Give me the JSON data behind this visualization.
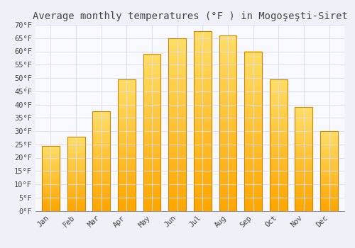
{
  "title": "Average monthly temperatures (°F ) in Mogoşeşti-Siret",
  "months": [
    "Jan",
    "Feb",
    "Mar",
    "Apr",
    "May",
    "Jun",
    "Jul",
    "Aug",
    "Sep",
    "Oct",
    "Nov",
    "Dec"
  ],
  "values": [
    24.5,
    28.0,
    37.5,
    49.5,
    59.0,
    65.0,
    67.5,
    66.0,
    60.0,
    49.5,
    39.0,
    30.0
  ],
  "bar_color_top": "#FFD966",
  "bar_color_bottom": "#FFA500",
  "bar_edge_color": "#CC8800",
  "background_color": "#f0f0f8",
  "plot_bg_color": "#f8f8ff",
  "grid_color": "#ddddee",
  "text_color": "#444444",
  "ylim": [
    0,
    70
  ],
  "yticks": [
    0,
    5,
    10,
    15,
    20,
    25,
    30,
    35,
    40,
    45,
    50,
    55,
    60,
    65,
    70
  ],
  "ytick_labels": [
    "0°F",
    "5°F",
    "10°F",
    "15°F",
    "20°F",
    "25°F",
    "30°F",
    "35°F",
    "40°F",
    "45°F",
    "50°F",
    "55°F",
    "60°F",
    "65°F",
    "70°F"
  ],
  "title_fontsize": 10,
  "tick_fontsize": 7.5,
  "font_family": "monospace",
  "bar_width": 0.7
}
